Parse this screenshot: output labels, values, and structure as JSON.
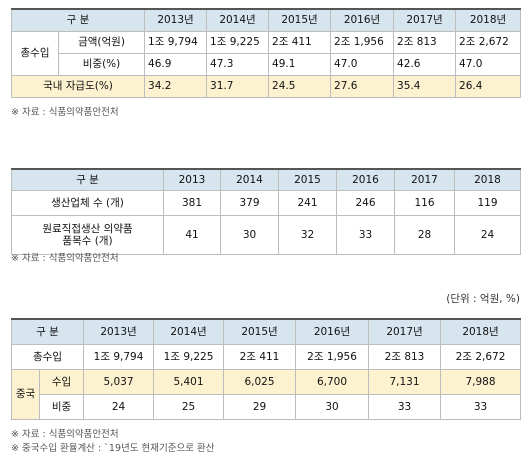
{
  "table1": {
    "header": [
      "구 분",
      "2013년",
      "2014년",
      "2015년",
      "2016년",
      "2017년",
      "2018년"
    ],
    "group_label": "총수입",
    "rows": [
      {
        "label": "금액(억원)",
        "values": [
          "1조 9,794",
          "1조 9,225",
          "2조 411",
          "2조 1,956",
          "2조 813",
          "2조 2,672"
        ]
      },
      {
        "label": "비중(%)",
        "values": [
          "46.9",
          "47.3",
          "49.1",
          "47.0",
          "42.6",
          "47.0"
        ]
      }
    ],
    "self_sufficiency": {
      "label": "국내 자급도(%)",
      "values": [
        "34.2",
        "31.7",
        "24.5",
        "27.6",
        "35.4",
        "26.4"
      ]
    },
    "source": "※ 자료 : 식품의약품안전처"
  },
  "table2": {
    "header": [
      "구 분",
      "2013",
      "2014",
      "2015",
      "2016",
      "2017",
      "2018"
    ],
    "rows": [
      {
        "label": "생산업체 수 (개)",
        "values": [
          "381",
          "379",
          "241",
          "246",
          "116",
          "119"
        ]
      },
      {
        "label_line1": "원료직접생산 의약품",
        "label_line2": "품목수 (개)",
        "values": [
          "41",
          "30",
          "32",
          "33",
          "28",
          "24"
        ]
      }
    ],
    "source": "※ 자료 : 식품의약품안전처"
  },
  "table3": {
    "unit": "(단위 : 억원, %)",
    "header": [
      "구 분",
      "2013년",
      "2014년",
      "2015년",
      "2016년",
      "2017년",
      "2018년"
    ],
    "total": {
      "label": "총수입",
      "values": [
        "1조 9,794",
        "1조 9,225",
        "2조 411",
        "2조 1,956",
        "2조 813",
        "2조 2,672"
      ]
    },
    "china_label": "중국",
    "china_rows": [
      {
        "label": "수입",
        "values": [
          "5,037",
          "5,401",
          "6,025",
          "6,700",
          "7,131",
          "7,988"
        ]
      },
      {
        "label": "비중",
        "values": [
          "24",
          "25",
          "29",
          "30",
          "33",
          "33"
        ]
      }
    ],
    "notes": [
      "※ 자료 : 식품의약품안전처",
      "※ 중국수입 환율계산 : `19년도 현재기준으로 환산"
    ]
  }
}
